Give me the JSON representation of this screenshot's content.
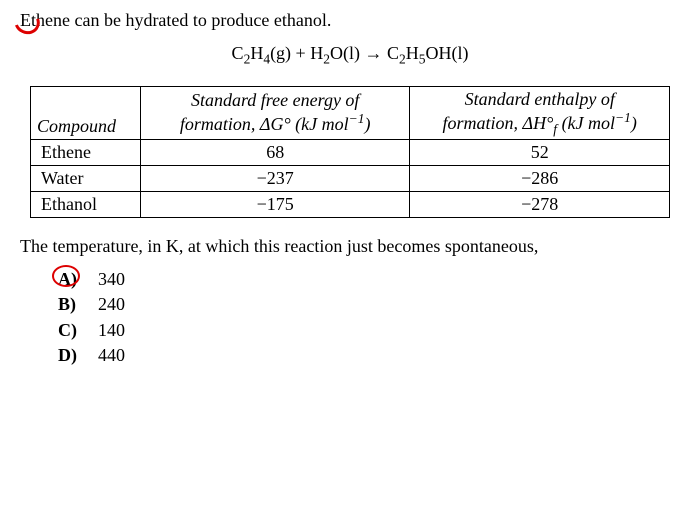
{
  "intro": "Ethene can be hydrated to produce ethanol.",
  "equation_html": "C<sub>2</sub>H<sub>4</sub>(g) + H<sub>2</sub>O(l) → C<sub>2</sub>H<sub>5</sub>OH(l)",
  "table": {
    "headers": {
      "compound": "Compound",
      "dg_html": "Standard free energy of<br>formation, ΔG° (kJ mol<sup>−1</sup>)",
      "dh_html": "Standard enthalpy of<br>formation, ΔH°<sub><i>f</i></sub> (kJ mol<sup>−1</sup>)"
    },
    "rows": [
      {
        "name": "Ethene",
        "dg": "68",
        "dh": "52"
      },
      {
        "name": "Water",
        "dg": "−237",
        "dh": "−286"
      },
      {
        "name": "Ethanol",
        "dg": "−175",
        "dh": "−278"
      }
    ]
  },
  "question": "The temperature, in K, at which this reaction just becomes spontaneous,",
  "choices": [
    {
      "label": "A)",
      "value": "340",
      "circled": true
    },
    {
      "label": "B)",
      "value": "240",
      "circled": false
    },
    {
      "label": "C)",
      "value": "140",
      "circled": false
    },
    {
      "label": "D)",
      "value": "440",
      "circled": false
    }
  ],
  "colors": {
    "mark": "#d00",
    "text": "#000",
    "bg": "#fff"
  },
  "col_widths": {
    "compound": "110px",
    "dg": "270px",
    "dh": "260px"
  }
}
